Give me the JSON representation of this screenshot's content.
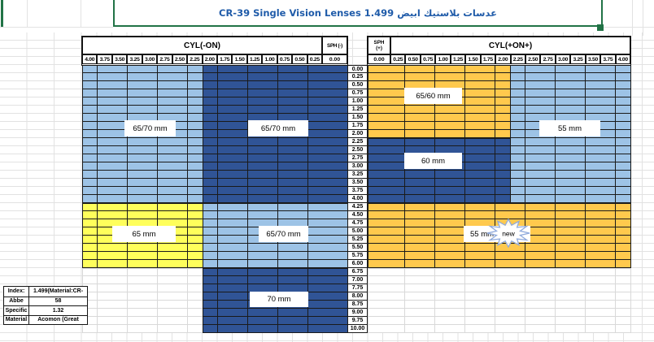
{
  "title": {
    "text": "CR-39 Single Vision Lenses 1.499 عدسات بلاستيك ابيض"
  },
  "left_table": {
    "cyl_header": "CYL(-ON)",
    "sph_header": "SPH (-)",
    "sph_value": "0.00",
    "cyl_cols": [
      "4.00",
      "3.75",
      "3.50",
      "3.25",
      "3.00",
      "2.75",
      "2.50",
      "2.25",
      "2.00",
      "1.75",
      "1.50",
      "1.25",
      "1.00",
      "0.75",
      "0.50",
      "0.25"
    ]
  },
  "right_table": {
    "cyl_header": "CYL(+ON+)",
    "sph_header_line1": "SPH",
    "sph_header_line2": "(+)",
    "sph_value": "0.00",
    "cyl_cols": [
      "0.25",
      "0.50",
      "0.75",
      "1.00",
      "1.25",
      "1.50",
      "1.75",
      "2.00",
      "2.25",
      "2.50",
      "2.75",
      "3.00",
      "3.25",
      "3.50",
      "3.75",
      "4.00"
    ]
  },
  "sph_rows": [
    "0.00",
    "0.25",
    "0.50",
    "0.75",
    "1.00",
    "1.25",
    "1.50",
    "1.75",
    "2.00",
    "2.25",
    "2.50",
    "2.75",
    "3.00",
    "3.25",
    "3.50",
    "3.75",
    "4.00",
    "4.25",
    "4.50",
    "4.75",
    "5.00",
    "5.25",
    "5.50",
    "5.75",
    "6.00",
    "6.75",
    "7.00",
    "7.75",
    "8.00",
    "8.75",
    "9.00",
    "9.75",
    "10.00"
  ],
  "regions": [
    {
      "name": "left-65-70-light",
      "rows": [
        0,
        16
      ],
      "cols": [
        0,
        7
      ],
      "color": "light_blue"
    },
    {
      "name": "left-65-70-dark",
      "rows": [
        0,
        16
      ],
      "cols": [
        8,
        16
      ],
      "color": "dark_blue"
    },
    {
      "name": "left-65-yellow",
      "rows": [
        17,
        24
      ],
      "cols": [
        0,
        7
      ],
      "color": "yellow"
    },
    {
      "name": "left-65-70-light2",
      "rows": [
        17,
        24
      ],
      "cols": [
        8,
        16
      ],
      "color": "light_blue"
    },
    {
      "name": "left-empty-bottom",
      "rows": [
        25,
        32
      ],
      "cols": [
        0,
        7
      ],
      "color": "empty"
    },
    {
      "name": "left-70-dark",
      "rows": [
        25,
        32
      ],
      "cols": [
        8,
        16
      ],
      "color": "dark_blue"
    },
    {
      "name": "right-65-60-orange",
      "rows": [
        0,
        8
      ],
      "cols": [
        18,
        26
      ],
      "color": "orange"
    },
    {
      "name": "right-60-dark",
      "rows": [
        9,
        16
      ],
      "cols": [
        18,
        26
      ],
      "color": "dark_blue"
    },
    {
      "name": "right-55-light",
      "rows": [
        0,
        16
      ],
      "cols": [
        27,
        34
      ],
      "color": "light_blue"
    },
    {
      "name": "right-55-new-orange",
      "rows": [
        17,
        24
      ],
      "cols": [
        18,
        34
      ],
      "color": "orange"
    },
    {
      "name": "right-empty-bottom",
      "rows": [
        25,
        32
      ],
      "cols": [
        18,
        34
      ],
      "color": "empty"
    }
  ],
  "region_labels": [
    {
      "text": "65/70 mm"
    },
    {
      "text": "65/70 mm"
    },
    {
      "text": "55 mm"
    },
    {
      "text": "65/60 mm"
    },
    {
      "text": "60 mm"
    },
    {
      "text": "65 mm"
    },
    {
      "text": "65/70 mm"
    },
    {
      "text": "55 mm",
      "starburst": "new"
    },
    {
      "text": "70 mm"
    }
  ],
  "info_box": {
    "rows": [
      {
        "label": "Index:",
        "value": "1.499(Material:CR-"
      },
      {
        "label": "Abbe",
        "value": "58"
      },
      {
        "label": "Specific",
        "value": "1.32"
      },
      {
        "label": "Material",
        "value": "Acomon (Great"
      }
    ]
  },
  "colors": {
    "light_blue": "#9DC3E6",
    "dark_blue": "#305496",
    "yellow": "#FFFF5B",
    "orange": "#FFC94D",
    "green": "#217346",
    "title_blue": "#1F5BA9",
    "cell_border": "#1A1A1A",
    "empty_border": "#D9D9D9",
    "grid_line": "#E2E2E2"
  }
}
